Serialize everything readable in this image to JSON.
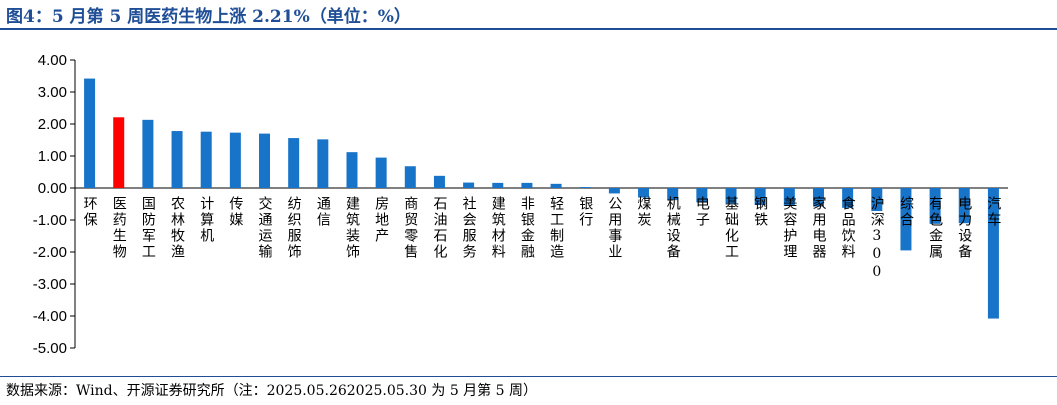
{
  "header": {
    "title": "图4：5 月第 5 周医药生物上涨 2.21%（单位：%）"
  },
  "footer": {
    "source": "数据来源：Wind、开源证券研究所（注：2025.05.262025.05.30 为 5 月第 5 周）"
  },
  "colors": {
    "default_bar": "#1874C8",
    "highlight_bar": "#FF0000",
    "title": "#1F4E96"
  },
  "chart_data": {
    "type": "bar",
    "categories": [
      "环保",
      "医药生物",
      "国防军工",
      "农林牧渔",
      "计算机",
      "传媒",
      "交通运输",
      "纺织服饰",
      "通信",
      "建筑装饰",
      "房地产",
      "商贸零售",
      "石油石化",
      "社会服务",
      "建筑材料",
      "非银金融",
      "轻工制造",
      "银行",
      "公用事业",
      "煤炭",
      "机械设备",
      "电子",
      "基础化工",
      "钢铁",
      "美容护理",
      "家用电器",
      "食品饮料",
      "沪深300",
      "综合",
      "有色金属",
      "电力设备",
      "汽车"
    ],
    "values": [
      3.42,
      2.21,
      2.13,
      1.78,
      1.76,
      1.73,
      1.7,
      1.56,
      1.52,
      1.12,
      0.95,
      0.68,
      0.38,
      0.17,
      0.16,
      0.16,
      0.13,
      0.03,
      -0.17,
      -0.3,
      -0.38,
      -0.45,
      -0.48,
      -0.53,
      -0.56,
      -0.58,
      -0.62,
      -0.72,
      -1.95,
      -1.12,
      -1.1,
      -4.08
    ],
    "highlight": "医药生物",
    "yticks": [
      "4.00",
      "3.00",
      "2.00",
      "1.00",
      "0.00",
      "-1.00",
      "-2.00",
      "-3.00",
      "-4.00",
      "-5.00"
    ],
    "ylim": [
      -5,
      4
    ],
    "grid": false,
    "legend": "none"
  }
}
